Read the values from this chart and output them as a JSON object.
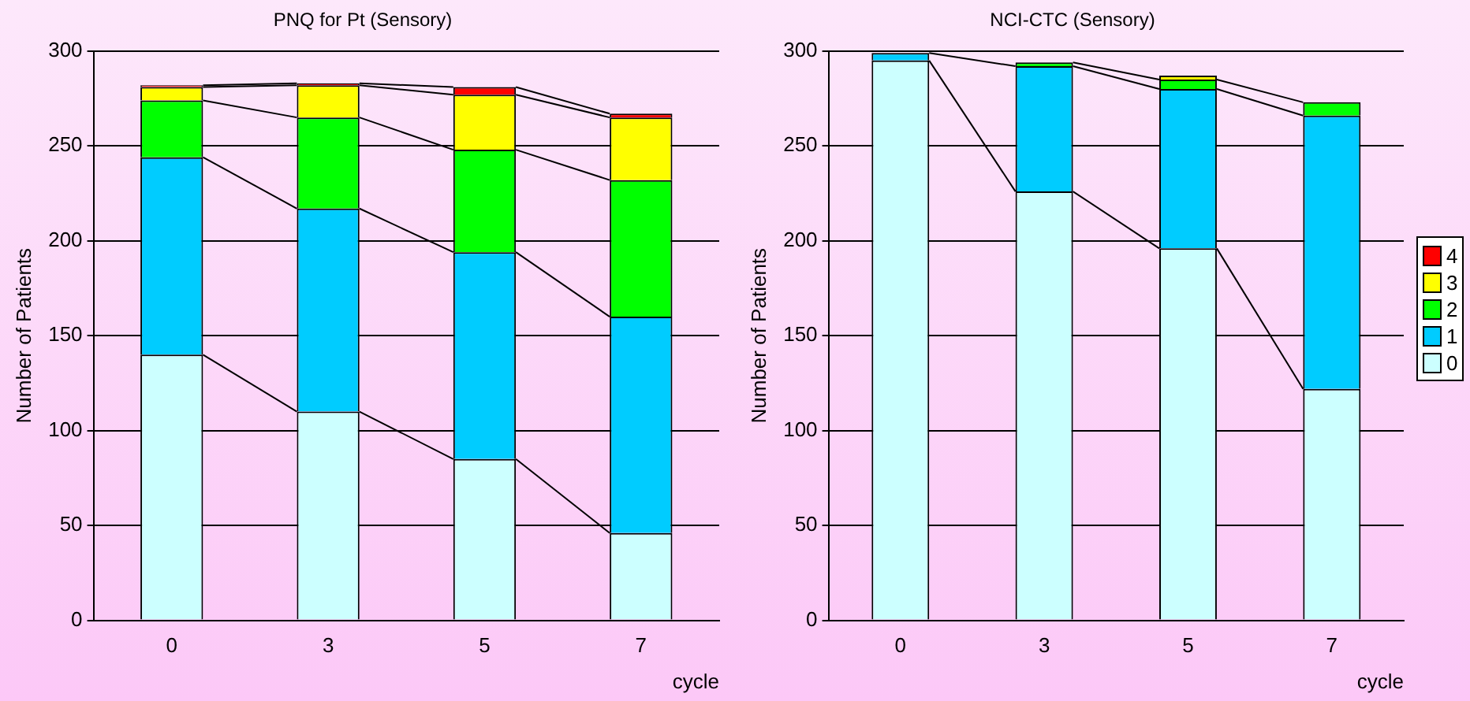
{
  "chart_data": [
    {
      "type": "bar",
      "title": "PNQ for Pt (Sensory)",
      "xlabel": "cycle",
      "ylabel": "Number of Patients",
      "categories": [
        "0",
        "3",
        "5",
        "7"
      ],
      "stacked": true,
      "ylim": [
        0,
        300
      ],
      "yticks": [
        0,
        50,
        100,
        150,
        200,
        250,
        300
      ],
      "grid": "y",
      "legend": "right",
      "series": [
        {
          "name": "0",
          "color": "#ccffff",
          "values": [
            140,
            110,
            85,
            46
          ]
        },
        {
          "name": "1",
          "color": "#00ccff",
          "values": [
            104,
            107,
            109,
            114
          ]
        },
        {
          "name": "2",
          "color": "#00ff00",
          "values": [
            30,
            48,
            54,
            72
          ]
        },
        {
          "name": "3",
          "color": "#ffff00",
          "values": [
            7,
            17,
            29,
            33
          ]
        },
        {
          "name": "4",
          "color": "#ff0000",
          "values": [
            1,
            1,
            4,
            2
          ]
        }
      ]
    },
    {
      "type": "bar",
      "title": "NCI-CTC (Sensory)",
      "xlabel": "cycle",
      "ylabel": "Number of Patients",
      "categories": [
        "0",
        "3",
        "5",
        "7"
      ],
      "stacked": true,
      "ylim": [
        0,
        300
      ],
      "yticks": [
        0,
        50,
        100,
        150,
        200,
        250,
        300
      ],
      "grid": "y",
      "legend": "right",
      "series": [
        {
          "name": "0",
          "color": "#ccffff",
          "values": [
            295,
            226,
            196,
            122
          ]
        },
        {
          "name": "1",
          "color": "#00ccff",
          "values": [
            4,
            66,
            84,
            144
          ]
        },
        {
          "name": "2",
          "color": "#00ff00",
          "values": [
            0,
            2,
            5,
            7
          ]
        },
        {
          "name": "3",
          "color": "#ffff00",
          "values": [
            0,
            0,
            2,
            0
          ]
        },
        {
          "name": "4",
          "color": "#ff0000",
          "values": [
            0,
            0,
            0,
            0
          ]
        }
      ]
    }
  ]
}
